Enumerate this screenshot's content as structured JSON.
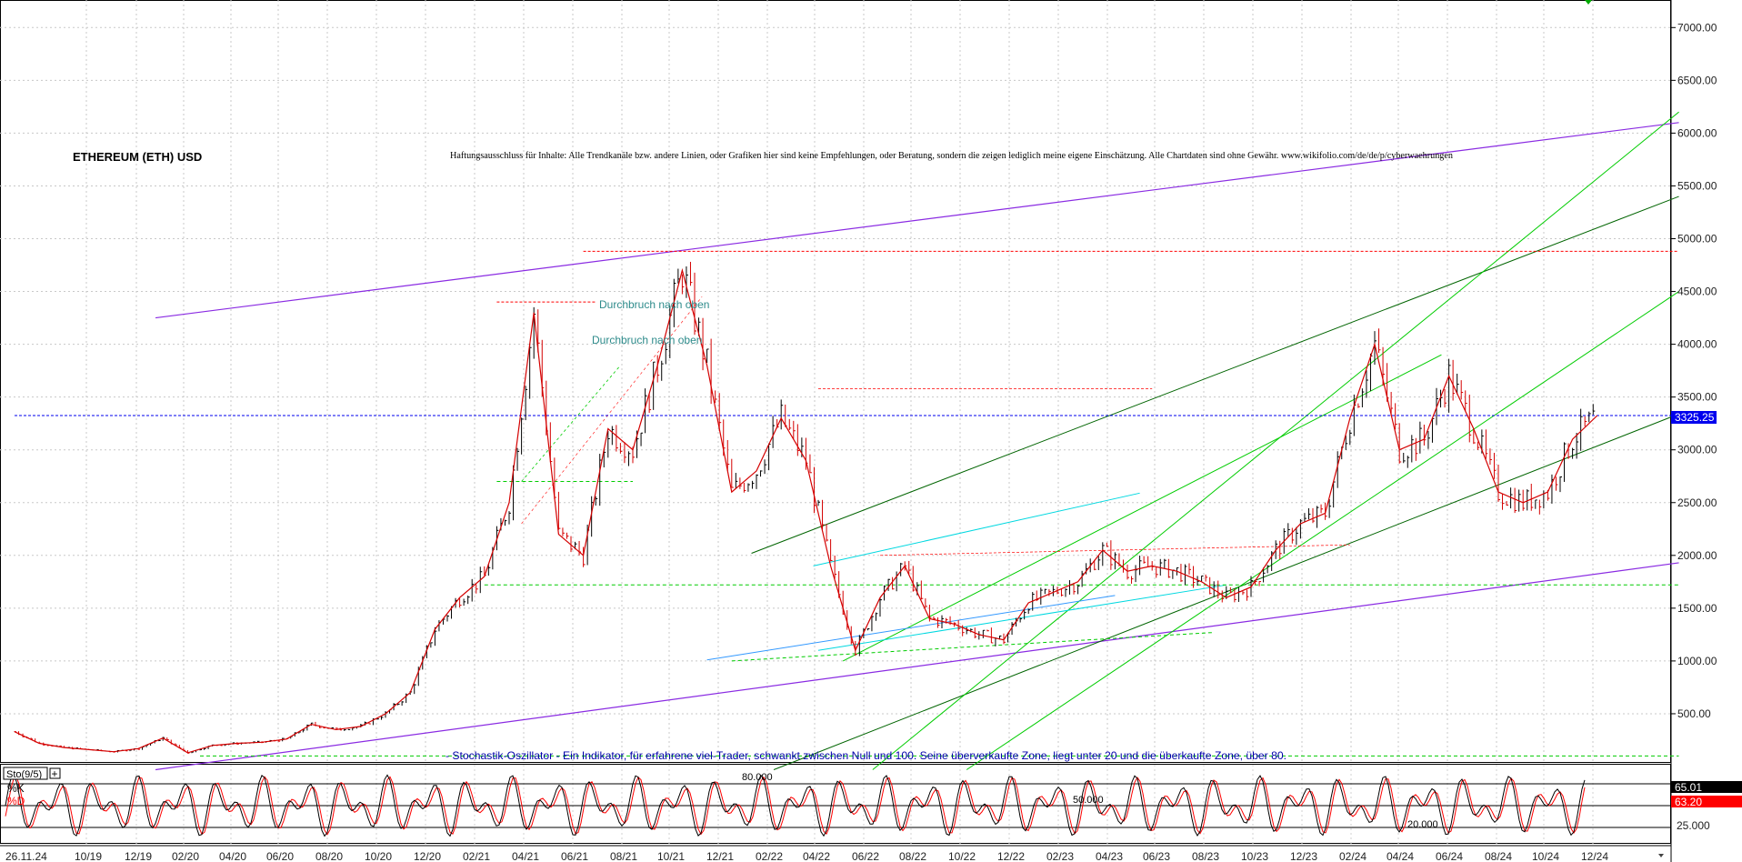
{
  "chart_data": {
    "type": "line",
    "title": "ETHEREUM (ETH) USD",
    "disclaimer": "Haftungsausschluss für Inhalte: Alle Trendkanäle bzw. andere Linien, oder Grafiken hier sind keine Empfehlungen, oder Beratung, sondern die zeigen lediglich meine eigene Einschätzung. Alle Chartdaten sind ohne Gewähr.  www.wikifolio.com/de/de/p/cyberwaehrungen",
    "ylim": [
      0,
      7400
    ],
    "y_ticks": [
      "7000.00",
      "6500.00",
      "6000.00",
      "5500.00",
      "5000.00",
      "4500.00",
      "4000.00",
      "3500.00",
      "3000.00",
      "2500.00",
      "2000.00",
      "1500.00",
      "1000.00",
      "500.00"
    ],
    "x_ticks": [
      "26.11.24",
      "10/19",
      "12/19",
      "02/20",
      "04/20",
      "06/20",
      "08/20",
      "10/20",
      "12/20",
      "02/21",
      "04/21",
      "06/21",
      "08/21",
      "10/21",
      "12/21",
      "02/22",
      "04/22",
      "06/22",
      "08/22",
      "10/22",
      "12/22",
      "02/23",
      "04/23",
      "06/23",
      "08/23",
      "10/23",
      "12/23",
      "02/24",
      "04/24",
      "06/24",
      "08/24",
      "10/24",
      "12/24"
    ],
    "last_price_label": "3325.25",
    "last_price": 3325.25,
    "annotations": [
      "Durchbruch nach oben",
      "Durchbruch nach oben"
    ],
    "price_series": {
      "name": "ETH/USD",
      "x": [
        "2019-08",
        "2019-09",
        "2019-10",
        "2019-11",
        "2019-12",
        "2020-01",
        "2020-02",
        "2020-03",
        "2020-04",
        "2020-05",
        "2020-06",
        "2020-07",
        "2020-08",
        "2020-09",
        "2020-10",
        "2020-11",
        "2020-12",
        "2021-01",
        "2021-02",
        "2021-03",
        "2021-04",
        "2021-05",
        "2021-06",
        "2021-07",
        "2021-08",
        "2021-09",
        "2021-10",
        "2021-11",
        "2021-12",
        "2022-01",
        "2022-02",
        "2022-03",
        "2022-04",
        "2022-05",
        "2022-06",
        "2022-07",
        "2022-08",
        "2022-09",
        "2022-10",
        "2022-11",
        "2022-12",
        "2023-01",
        "2023-02",
        "2023-03",
        "2023-04",
        "2023-05",
        "2023-06",
        "2023-07",
        "2023-08",
        "2023-09",
        "2023-10",
        "2023-11",
        "2023-12",
        "2024-01",
        "2024-02",
        "2024-03",
        "2024-04",
        "2024-05",
        "2024-06",
        "2024-07",
        "2024-08",
        "2024-09",
        "2024-10",
        "2024-11",
        "2024-12"
      ],
      "values": [
        330,
        220,
        180,
        160,
        140,
        170,
        270,
        130,
        200,
        220,
        230,
        260,
        400,
        350,
        380,
        500,
        700,
        1300,
        1600,
        1800,
        2500,
        4300,
        2200,
        2000,
        3200,
        3000,
        3800,
        4700,
        3800,
        2600,
        2800,
        3300,
        2900,
        1900,
        1100,
        1600,
        1900,
        1400,
        1350,
        1250,
        1200,
        1550,
        1650,
        1750,
        2050,
        1850,
        1900,
        1850,
        1750,
        1600,
        1700,
        2050,
        2300,
        2400,
        3300,
        4000,
        3000,
        3100,
        3700,
        3200,
        2600,
        2500,
        2600,
        3100,
        3325
      ]
    },
    "stochastic": {
      "label": "Sto(9/5)",
      "k_label": "%K",
      "d_label": "%D",
      "k_value": "65.01",
      "d_value": "63.20",
      "levels": [
        "80.000",
        "50.000",
        "20.000"
      ],
      "scale_label": "25.000",
      "description": "- Stochastik-Oszillator - Ein Indikator, für erfahrene viel-Trader, schwankt zwischen Null und 100. Seine überverkaufte Zone, liegt unter 20 und die überkaufte Zone, über 80."
    },
    "colors": {
      "price": "#d40000",
      "price_dark": "#000000",
      "purple": "#8a2be2",
      "green": "#00cc00",
      "dark_green": "#006400",
      "cyan": "#00d8e0",
      "red_level": "#ff0000",
      "last_price_bg": "#0000ee",
      "k_value_bg": "#000000",
      "d_value_bg": "#ff0000"
    },
    "grid": true
  }
}
